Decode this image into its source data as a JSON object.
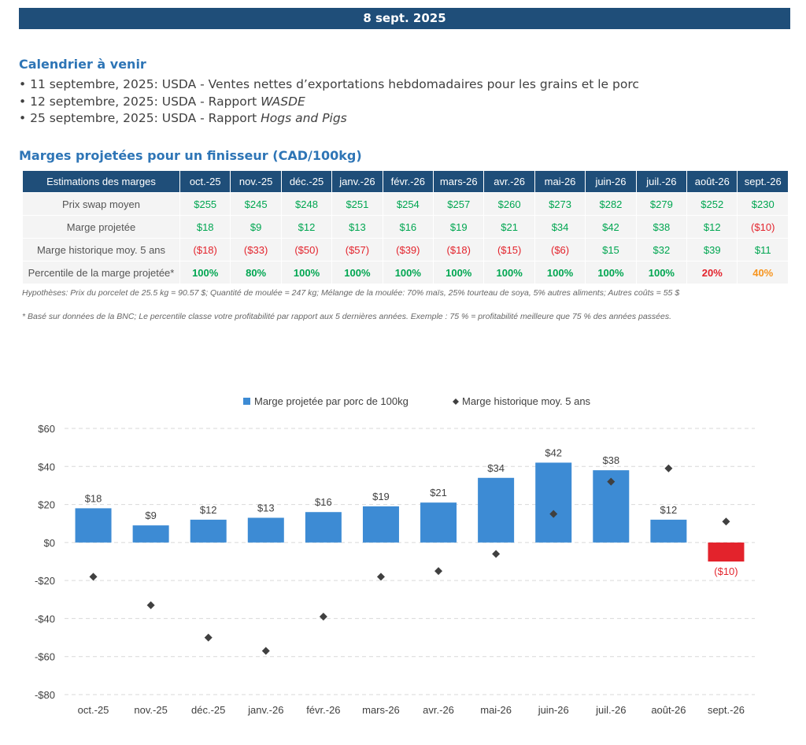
{
  "banner": {
    "date": "8 sept. 2025"
  },
  "calendar": {
    "title": "Calendrier à venir",
    "items": [
      {
        "text": "11 septembre, 2025: USDA - Ventes nettes d’exportations hebdomadaires pour les grains et le porc",
        "italic": ""
      },
      {
        "text": "12 septembre, 2025: USDA - Rapport ",
        "italic": "WASDE"
      },
      {
        "text": "25 septembre, 2025: USDA - Rapport ",
        "italic": "Hogs and Pigs"
      }
    ]
  },
  "margins": {
    "title": "Marges projetées pour un finisseur (CAD/100kg)",
    "header_label": "Estimations des marges",
    "months": [
      "oct.-25",
      "nov.-25",
      "déc.-25",
      "janv.-26",
      "févr.-26",
      "mars-26",
      "avr.-26",
      "mai-26",
      "juin-26",
      "juil.-26",
      "août-26",
      "sept.-26"
    ],
    "rows": [
      {
        "label": "Prix swap moyen",
        "values": [
          "$255",
          "$245",
          "$248",
          "$251",
          "$254",
          "$257",
          "$260",
          "$273",
          "$282",
          "$279",
          "$252",
          "$230"
        ],
        "styles": [
          "pos",
          "pos",
          "pos",
          "pos",
          "pos",
          "pos",
          "pos",
          "pos",
          "pos",
          "pos",
          "pos",
          "pos"
        ]
      },
      {
        "label": "Marge projetée",
        "values": [
          "$18",
          "$9",
          "$12",
          "$13",
          "$16",
          "$19",
          "$21",
          "$34",
          "$42",
          "$38",
          "$12",
          "($10)"
        ],
        "styles": [
          "pos",
          "pos",
          "pos",
          "pos",
          "pos",
          "pos",
          "pos",
          "pos",
          "pos",
          "pos",
          "pos",
          "neg"
        ]
      },
      {
        "label": "Marge historique moy. 5 ans",
        "values": [
          "($18)",
          "($33)",
          "($50)",
          "($57)",
          "($39)",
          "($18)",
          "($15)",
          "($6)",
          "$15",
          "$32",
          "$39",
          "$11"
        ],
        "styles": [
          "neg",
          "neg",
          "neg",
          "neg",
          "neg",
          "neg",
          "neg",
          "neg",
          "pos",
          "pos",
          "pos",
          "pos"
        ]
      },
      {
        "label": "Percentile de la marge projetée*",
        "values": [
          "100%",
          "80%",
          "100%",
          "100%",
          "100%",
          "100%",
          "100%",
          "100%",
          "100%",
          "100%",
          "20%",
          "40%"
        ],
        "styles": [
          "pos pct",
          "pos pct",
          "pos pct",
          "pos pct",
          "pos pct",
          "pos pct",
          "pos pct",
          "pos pct",
          "pos pct",
          "pos pct",
          "neg pct",
          "warn pct"
        ]
      }
    ]
  },
  "notes": {
    "hypotheses": "Hypothèses: Prix du porcelet de 25.5 kg = 90.57 $; Quantité de moulée = 247 kg; Mélange de la moulée: 70% maïs, 25% tourteau de soya, 5% autres aliments; Autres coûts = 55 $",
    "footnote": "* Basé sur données de la BNC; Le percentile classe votre profitabilité par rapport aux 5 dernières années. Exemple : 75 % = profitabilité meilleure que 75 % des années passées."
  },
  "chart_data": {
    "type": "bar",
    "categories": [
      "oct.-25",
      "nov.-25",
      "déc.-25",
      "janv.-26",
      "févr.-26",
      "mars-26",
      "avr.-26",
      "mai-26",
      "juin-26",
      "juil.-26",
      "août-26",
      "sept.-26"
    ],
    "series": [
      {
        "name": "Marge projetée par porc de 100kg",
        "kind": "bar",
        "values": [
          18,
          9,
          12,
          13,
          16,
          19,
          21,
          34,
          42,
          38,
          12,
          -10
        ],
        "labels": [
          "$18",
          "$9",
          "$12",
          "$13",
          "$16",
          "$19",
          "$21",
          "$34",
          "$42",
          "$38",
          "$12",
          "($10)"
        ]
      },
      {
        "name": "Marge historique moy. 5 ans",
        "kind": "marker",
        "values": [
          -18,
          -33,
          -50,
          -57,
          -39,
          -18,
          -15,
          -6,
          15,
          32,
          39,
          11
        ]
      }
    ],
    "ylim": [
      -80,
      60
    ],
    "yticks": [
      60,
      40,
      20,
      0,
      -20,
      -40,
      -60,
      -80
    ],
    "ytick_labels": [
      "$60",
      "$40",
      "$20",
      "$0",
      "-$20",
      "-$40",
      "-$60",
      "-$80"
    ],
    "grid": true,
    "legend": "top-center",
    "colors": {
      "bar": "#3d8bd4",
      "bar_negative": "#e3232c",
      "marker": "#404040",
      "negative_label": "#e3232c"
    }
  }
}
